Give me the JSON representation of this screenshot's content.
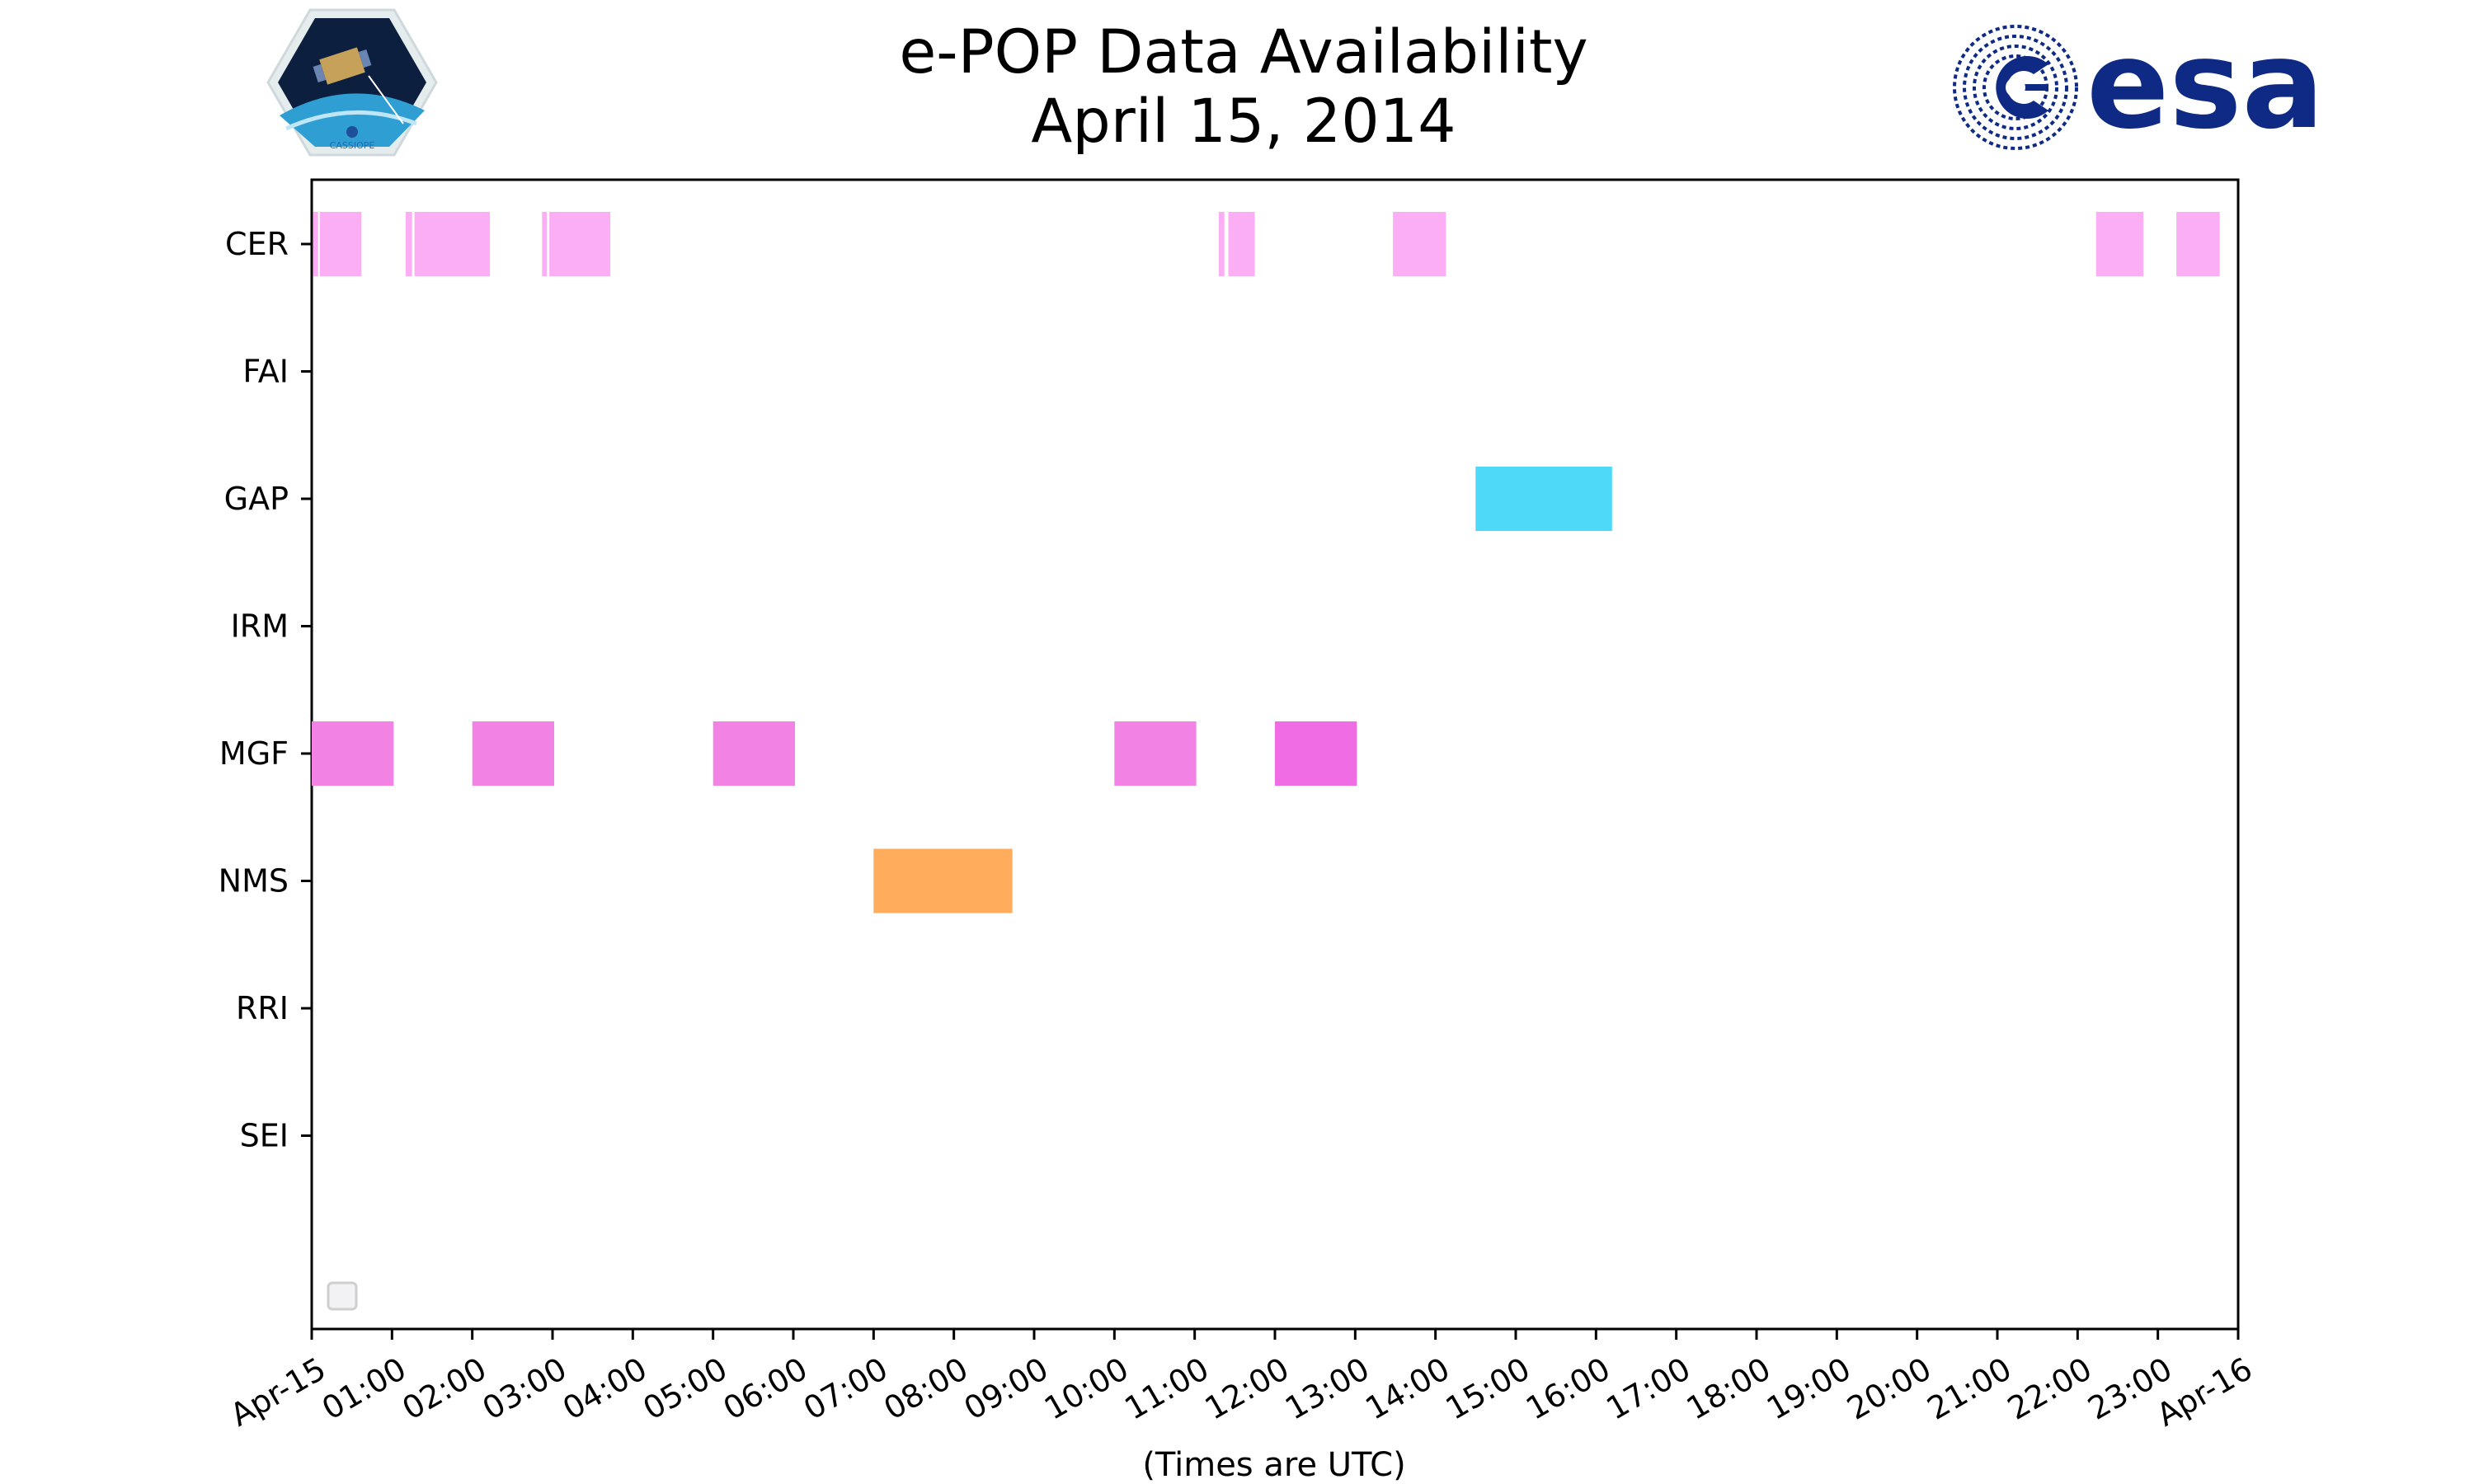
{
  "chart_data": {
    "type": "timeline",
    "title": "e-POP Data Availability",
    "subtitle": "April 15, 2014",
    "xlabel": "(Times are UTC)",
    "ylabel": "",
    "x_range_hours": [
      0,
      24
    ],
    "x_ticks": [
      "Apr-15",
      "01:00",
      "02:00",
      "03:00",
      "04:00",
      "05:00",
      "06:00",
      "07:00",
      "08:00",
      "09:00",
      "10:00",
      "11:00",
      "12:00",
      "13:00",
      "14:00",
      "15:00",
      "16:00",
      "17:00",
      "18:00",
      "19:00",
      "20:00",
      "21:00",
      "22:00",
      "23:00",
      "Apr-16"
    ],
    "instruments": [
      "CER",
      "FAI",
      "GAP",
      "IRM",
      "MGF",
      "NMS",
      "RRI",
      "SEI"
    ],
    "grid": false,
    "legend": "bottom-left, empty",
    "intervals": [
      {
        "instrument": "CER",
        "start": 0.02,
        "end": 0.08,
        "color": "#fcaef4"
      },
      {
        "instrument": "CER",
        "start": 0.1,
        "end": 0.62,
        "color": "#fcaef4"
      },
      {
        "instrument": "CER",
        "start": 1.17,
        "end": 1.25,
        "color": "#fcaef4"
      },
      {
        "instrument": "CER",
        "start": 1.28,
        "end": 2.22,
        "color": "#fcaef4"
      },
      {
        "instrument": "CER",
        "start": 2.87,
        "end": 2.93,
        "color": "#fcaef4"
      },
      {
        "instrument": "CER",
        "start": 2.96,
        "end": 3.72,
        "color": "#fcaef4"
      },
      {
        "instrument": "CER",
        "start": 11.3,
        "end": 11.37,
        "color": "#fcaef4"
      },
      {
        "instrument": "CER",
        "start": 11.42,
        "end": 11.75,
        "color": "#fcaef4"
      },
      {
        "instrument": "CER",
        "start": 13.47,
        "end": 14.13,
        "color": "#fcaef4"
      },
      {
        "instrument": "CER",
        "start": 22.23,
        "end": 22.82,
        "color": "#fcaef4"
      },
      {
        "instrument": "CER",
        "start": 23.23,
        "end": 23.77,
        "color": "#fcaef4"
      },
      {
        "instrument": "GAP",
        "start": 14.5,
        "end": 16.2,
        "color": "#4ed9f8"
      },
      {
        "instrument": "MGF",
        "start": 0.0,
        "end": 1.02,
        "color": "#f283e4"
      },
      {
        "instrument": "MGF",
        "start": 2.0,
        "end": 3.02,
        "color": "#f283e4"
      },
      {
        "instrument": "MGF",
        "start": 5.0,
        "end": 6.02,
        "color": "#f283e4"
      },
      {
        "instrument": "MGF",
        "start": 10.0,
        "end": 11.02,
        "color": "#f283e4"
      },
      {
        "instrument": "MGF",
        "start": 12.0,
        "end": 13.02,
        "color": "#f06ce4"
      },
      {
        "instrument": "NMS",
        "start": 7.0,
        "end": 8.73,
        "color": "#ffad5d"
      }
    ]
  },
  "logos": {
    "left": {
      "name": "cassiope-mission-logo",
      "text": "CASSIOPE",
      "colors": {
        "sky": "#0d1f3f",
        "earth": "#2f9fd3",
        "border": "#dfe7ea"
      }
    },
    "right": {
      "name": "esa-logo",
      "text": "esa",
      "color": "#0f2a84"
    }
  }
}
